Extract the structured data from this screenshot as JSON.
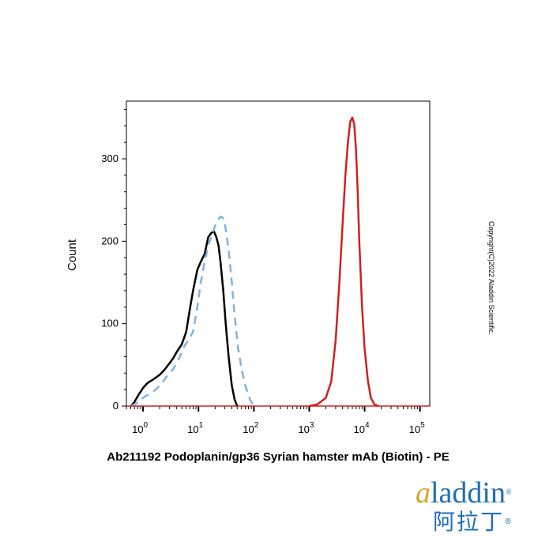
{
  "chart_data": {
    "type": "line",
    "title": "Ab211192 Podoplanin/gp36 Syrian hamster mAb (Biotin) - PE",
    "xlabel": "",
    "ylabel": "Count",
    "xscale": "log",
    "xlim": [
      0.5,
      150000
    ],
    "ylim": [
      0,
      370
    ],
    "yticks": [
      0,
      100,
      200,
      300
    ],
    "ytick_labels": [
      "0",
      "100",
      "200",
      "300"
    ],
    "xticks": [
      1,
      10,
      100,
      1000,
      10000,
      100000
    ],
    "xtick_base_labels": [
      "10",
      "10",
      "10",
      "10",
      "10",
      "10"
    ],
    "xtick_exponents": [
      "0",
      "1",
      "2",
      "3",
      "4",
      "5"
    ],
    "grid": false,
    "series": [
      {
        "color": "#000000",
        "style": "solid",
        "points": [
          [
            0.6,
            0
          ],
          [
            0.7,
            5
          ],
          [
            0.8,
            12
          ],
          [
            1.0,
            22
          ],
          [
            1.2,
            28
          ],
          [
            1.5,
            32
          ],
          [
            2.0,
            38
          ],
          [
            2.5,
            45
          ],
          [
            3.0,
            52
          ],
          [
            3.5,
            58
          ],
          [
            4.0,
            65
          ],
          [
            5.0,
            75
          ],
          [
            6.0,
            90
          ],
          [
            7.0,
            118
          ],
          [
            8.0,
            140
          ],
          [
            9.5,
            165
          ],
          [
            11,
            175
          ],
          [
            13,
            185
          ],
          [
            15,
            205
          ],
          [
            17,
            210
          ],
          [
            19,
            212
          ],
          [
            21,
            205
          ],
          [
            23,
            195
          ],
          [
            25,
            175
          ],
          [
            28,
            140
          ],
          [
            31,
            100
          ],
          [
            35,
            60
          ],
          [
            40,
            25
          ],
          [
            45,
            8
          ],
          [
            50,
            0
          ]
        ]
      },
      {
        "color": "#7fb3e0",
        "style": "dashed",
        "points": [
          [
            0.6,
            0
          ],
          [
            0.8,
            4
          ],
          [
            1.0,
            10
          ],
          [
            1.3,
            15
          ],
          [
            1.7,
            20
          ],
          [
            2.2,
            28
          ],
          [
            2.8,
            38
          ],
          [
            3.5,
            45
          ],
          [
            4.5,
            58
          ],
          [
            5.5,
            72
          ],
          [
            6.5,
            80
          ],
          [
            8.0,
            90
          ],
          [
            9.5,
            120
          ],
          [
            11,
            150
          ],
          [
            13,
            175
          ],
          [
            15,
            195
          ],
          [
            17,
            205
          ],
          [
            19,
            215
          ],
          [
            22,
            225
          ],
          [
            25,
            230
          ],
          [
            28,
            228
          ],
          [
            31,
            215
          ],
          [
            35,
            190
          ],
          [
            40,
            150
          ],
          [
            45,
            110
          ],
          [
            52,
            70
          ],
          [
            60,
            45
          ],
          [
            70,
            25
          ],
          [
            85,
            8
          ],
          [
            100,
            0
          ]
        ]
      },
      {
        "color": "#cc2222",
        "style": "solid",
        "points": [
          [
            1000,
            0
          ],
          [
            1400,
            2
          ],
          [
            2000,
            10
          ],
          [
            2500,
            30
          ],
          [
            3000,
            80
          ],
          [
            3500,
            150
          ],
          [
            4000,
            220
          ],
          [
            4500,
            280
          ],
          [
            5000,
            320
          ],
          [
            5500,
            345
          ],
          [
            6000,
            350
          ],
          [
            6500,
            342
          ],
          [
            7000,
            310
          ],
          [
            7500,
            260
          ],
          [
            8000,
            200
          ],
          [
            9000,
            120
          ],
          [
            10000,
            70
          ],
          [
            11500,
            30
          ],
          [
            13000,
            10
          ],
          [
            15000,
            2
          ],
          [
            18000,
            0
          ]
        ]
      }
    ]
  },
  "copyright_text": "Copyright(C)2022 Aladdin Scientific.",
  "logo": {
    "first_letter": "a",
    "rest": "laddin",
    "registered": "®",
    "chinese": "阿拉丁",
    "chinese_registered": "®"
  }
}
